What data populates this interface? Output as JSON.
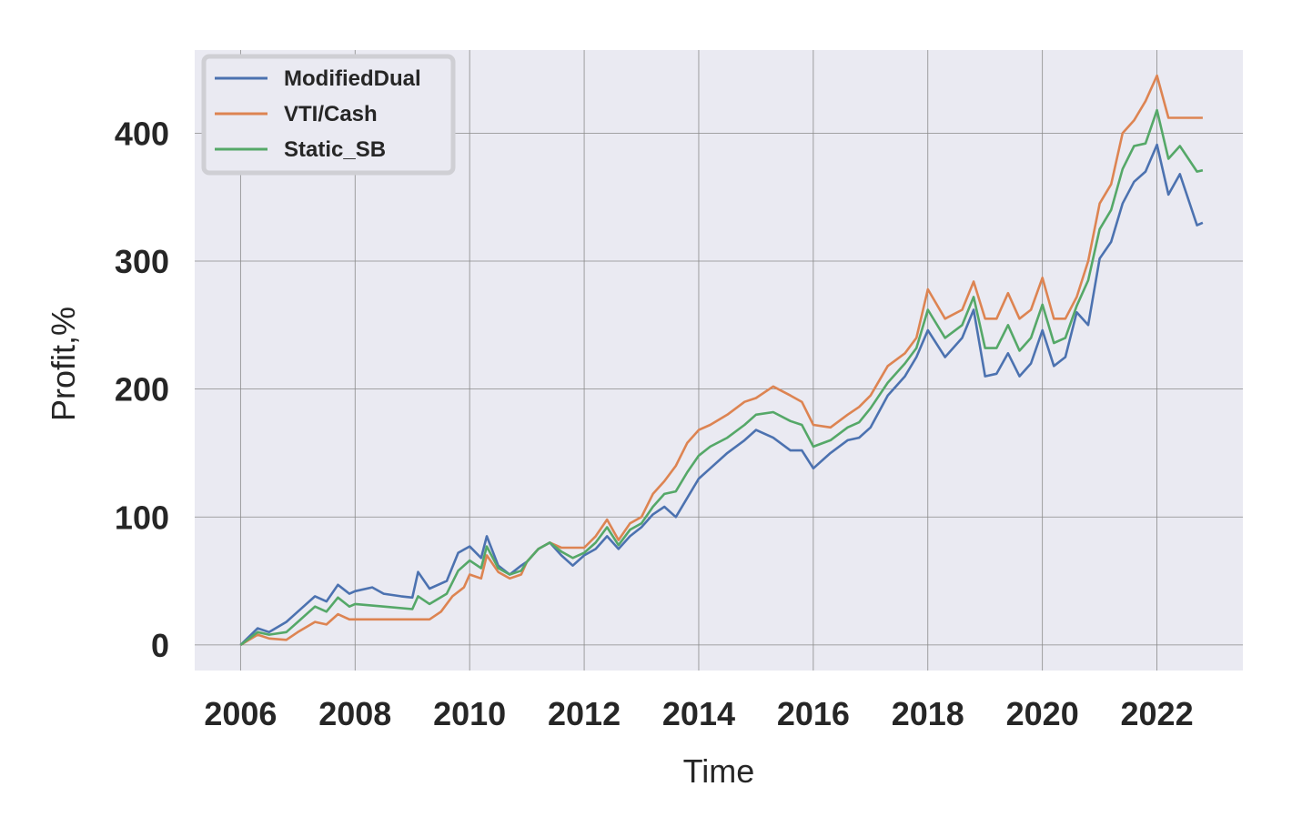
{
  "chart_data": {
    "type": "line",
    "title": "",
    "xlabel": "Time",
    "ylabel": "Profit,%",
    "xlim": [
      2005.2,
      2023.5
    ],
    "ylim": [
      -20,
      465
    ],
    "x_ticks": [
      "2006",
      "2008",
      "2010",
      "2012",
      "2014",
      "2016",
      "2018",
      "2020",
      "2022"
    ],
    "y_ticks": [
      "0",
      "100",
      "200",
      "300",
      "400"
    ],
    "grid": true,
    "legend_position": "top-left",
    "series": [
      {
        "name": "ModifiedDual",
        "color": "#4c72b0",
        "x": [
          2006.0,
          2006.3,
          2006.5,
          2006.8,
          2007.0,
          2007.3,
          2007.5,
          2007.7,
          2007.9,
          2008.0,
          2008.3,
          2008.5,
          2008.8,
          2009.0,
          2009.1,
          2009.3,
          2009.6,
          2009.8,
          2010.0,
          2010.2,
          2010.3,
          2010.5,
          2010.7,
          2010.9,
          2011.0,
          2011.2,
          2011.4,
          2011.6,
          2011.8,
          2012.0,
          2012.2,
          2012.4,
          2012.6,
          2012.8,
          2013.0,
          2013.2,
          2013.4,
          2013.6,
          2013.8,
          2014.0,
          2014.2,
          2014.5,
          2014.8,
          2015.0,
          2015.3,
          2015.6,
          2015.8,
          2016.0,
          2016.3,
          2016.6,
          2016.8,
          2017.0,
          2017.3,
          2017.6,
          2017.8,
          2018.0,
          2018.3,
          2018.6,
          2018.8,
          2019.0,
          2019.2,
          2019.4,
          2019.6,
          2019.8,
          2020.0,
          2020.2,
          2020.4,
          2020.6,
          2020.8,
          2021.0,
          2021.2,
          2021.4,
          2021.6,
          2021.8,
          2022.0,
          2022.2,
          2022.4,
          2022.7,
          2022.8
        ],
        "y": [
          0,
          13,
          10,
          18,
          26,
          38,
          34,
          47,
          40,
          42,
          45,
          40,
          38,
          37,
          57,
          44,
          50,
          72,
          77,
          68,
          85,
          62,
          55,
          62,
          65,
          75,
          80,
          70,
          62,
          70,
          75,
          85,
          75,
          85,
          92,
          102,
          108,
          100,
          115,
          130,
          138,
          150,
          160,
          168,
          162,
          152,
          152,
          138,
          150,
          160,
          162,
          170,
          195,
          210,
          225,
          246,
          225,
          240,
          262,
          210,
          212,
          228,
          210,
          220,
          246,
          218,
          225,
          260,
          250,
          302,
          315,
          345,
          362,
          370,
          391,
          352,
          368,
          328,
          330
        ]
      },
      {
        "name": "VTI/Cash",
        "color": "#dd8452",
        "x": [
          2006.0,
          2006.3,
          2006.5,
          2006.8,
          2007.0,
          2007.3,
          2007.5,
          2007.7,
          2007.9,
          2008.0,
          2008.5,
          2009.0,
          2009.3,
          2009.5,
          2009.7,
          2009.9,
          2010.0,
          2010.2,
          2010.3,
          2010.5,
          2010.7,
          2010.9,
          2011.0,
          2011.2,
          2011.4,
          2011.6,
          2011.8,
          2012.0,
          2012.2,
          2012.4,
          2012.6,
          2012.8,
          2013.0,
          2013.2,
          2013.4,
          2013.6,
          2013.8,
          2014.0,
          2014.2,
          2014.5,
          2014.8,
          2015.0,
          2015.3,
          2015.6,
          2015.8,
          2016.0,
          2016.3,
          2016.6,
          2016.8,
          2017.0,
          2017.3,
          2017.6,
          2017.8,
          2018.0,
          2018.3,
          2018.6,
          2018.8,
          2019.0,
          2019.2,
          2019.4,
          2019.6,
          2019.8,
          2020.0,
          2020.2,
          2020.4,
          2020.6,
          2020.8,
          2021.0,
          2021.2,
          2021.4,
          2021.6,
          2021.8,
          2022.0,
          2022.2,
          2022.4,
          2022.7,
          2022.8
        ],
        "y": [
          0,
          8,
          5,
          4,
          10,
          18,
          16,
          24,
          20,
          20,
          20,
          20,
          20,
          26,
          38,
          45,
          55,
          52,
          70,
          57,
          52,
          55,
          65,
          75,
          80,
          76,
          76,
          76,
          85,
          98,
          82,
          95,
          100,
          118,
          128,
          140,
          158,
          168,
          172,
          180,
          190,
          193,
          202,
          195,
          190,
          172,
          170,
          180,
          186,
          195,
          218,
          228,
          240,
          278,
          255,
          262,
          284,
          255,
          255,
          275,
          255,
          262,
          287,
          255,
          255,
          272,
          300,
          345,
          360,
          400,
          410,
          425,
          445,
          412,
          412,
          412,
          412
        ]
      },
      {
        "name": "Static_SB",
        "color": "#55a868",
        "x": [
          2006.0,
          2006.3,
          2006.5,
          2006.8,
          2007.0,
          2007.3,
          2007.5,
          2007.7,
          2007.9,
          2008.0,
          2008.5,
          2009.0,
          2009.1,
          2009.3,
          2009.6,
          2009.8,
          2010.0,
          2010.2,
          2010.3,
          2010.5,
          2010.7,
          2010.9,
          2011.0,
          2011.2,
          2011.4,
          2011.6,
          2011.8,
          2012.0,
          2012.2,
          2012.4,
          2012.6,
          2012.8,
          2013.0,
          2013.2,
          2013.4,
          2013.6,
          2013.8,
          2014.0,
          2014.2,
          2014.5,
          2014.8,
          2015.0,
          2015.3,
          2015.6,
          2015.8,
          2016.0,
          2016.3,
          2016.6,
          2016.8,
          2017.0,
          2017.3,
          2017.6,
          2017.8,
          2018.0,
          2018.3,
          2018.6,
          2018.8,
          2019.0,
          2019.2,
          2019.4,
          2019.6,
          2019.8,
          2020.0,
          2020.2,
          2020.4,
          2020.6,
          2020.8,
          2021.0,
          2021.2,
          2021.4,
          2021.6,
          2021.8,
          2022.0,
          2022.2,
          2022.4,
          2022.7,
          2022.8
        ],
        "y": [
          0,
          10,
          8,
          10,
          18,
          30,
          26,
          37,
          30,
          32,
          30,
          28,
          38,
          32,
          40,
          58,
          66,
          60,
          77,
          60,
          55,
          58,
          65,
          75,
          80,
          73,
          68,
          72,
          80,
          92,
          78,
          90,
          95,
          108,
          118,
          120,
          135,
          148,
          155,
          162,
          172,
          180,
          182,
          175,
          172,
          155,
          160,
          170,
          174,
          185,
          205,
          220,
          232,
          262,
          240,
          250,
          272,
          232,
          232,
          250,
          230,
          240,
          266,
          236,
          240,
          265,
          285,
          325,
          340,
          372,
          390,
          392,
          418,
          380,
          390,
          370,
          371
        ]
      }
    ]
  }
}
